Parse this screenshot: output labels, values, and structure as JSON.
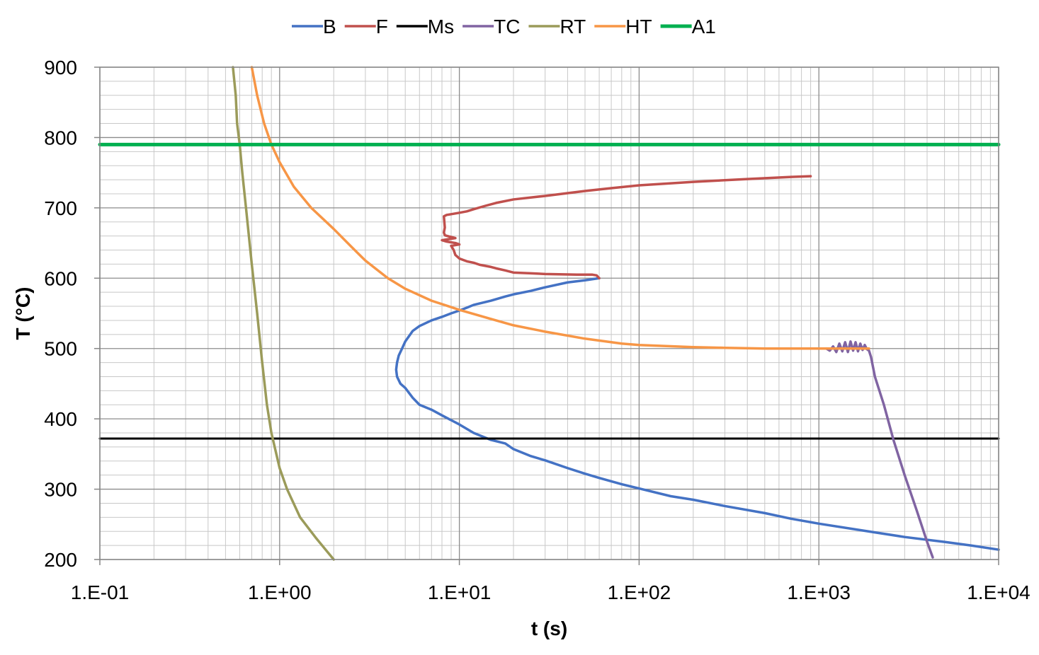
{
  "chart_data": {
    "type": "line",
    "title": "",
    "xlabel": "t (s)",
    "ylabel": "T (°C)",
    "xscale": "log",
    "xlim": [
      0.1,
      10000
    ],
    "ylim": [
      200,
      900
    ],
    "xticks": [
      0.1,
      1,
      10,
      100,
      1000,
      10000
    ],
    "xtick_labels": [
      "1.E-01",
      "1.E+00",
      "1.E+01",
      "1.E+02",
      "1.E+03",
      "1.E+04"
    ],
    "yticks": [
      200,
      300,
      400,
      500,
      600,
      700,
      800,
      900
    ],
    "ytick_labels": [
      "200",
      "300",
      "400",
      "500",
      "600",
      "700",
      "800",
      "900"
    ],
    "grid": true,
    "legend_position": "top",
    "series": [
      {
        "name": "B",
        "color": "#4472C4",
        "points": [
          [
            60,
            600
          ],
          [
            50,
            597
          ],
          [
            40,
            594
          ],
          [
            30,
            587
          ],
          [
            25,
            582
          ],
          [
            20,
            577
          ],
          [
            18,
            574
          ],
          [
            15,
            568
          ],
          [
            12,
            562
          ],
          [
            11,
            558
          ],
          [
            10,
            554
          ],
          [
            9,
            550
          ],
          [
            8,
            545
          ],
          [
            7,
            540
          ],
          [
            6,
            532
          ],
          [
            5.5,
            525
          ],
          [
            5,
            510
          ],
          [
            4.8,
            500
          ],
          [
            4.6,
            490
          ],
          [
            4.5,
            480
          ],
          [
            4.45,
            470
          ],
          [
            4.5,
            460
          ],
          [
            4.7,
            450
          ],
          [
            5,
            444
          ],
          [
            5.5,
            430
          ],
          [
            6,
            420
          ],
          [
            7,
            413
          ],
          [
            8,
            405
          ],
          [
            10,
            392
          ],
          [
            12,
            380
          ],
          [
            15,
            370
          ],
          [
            18,
            365
          ],
          [
            20,
            357
          ],
          [
            25,
            347
          ],
          [
            30,
            341
          ],
          [
            40,
            330
          ],
          [
            50,
            322
          ],
          [
            60,
            316
          ],
          [
            80,
            307
          ],
          [
            100,
            301
          ],
          [
            150,
            290
          ],
          [
            200,
            285
          ],
          [
            300,
            276
          ],
          [
            500,
            266
          ],
          [
            700,
            258
          ],
          [
            1000,
            251
          ],
          [
            2000,
            239
          ],
          [
            3000,
            232
          ],
          [
            5000,
            225
          ],
          [
            7000,
            220
          ],
          [
            10000,
            214
          ]
        ]
      },
      {
        "name": "F",
        "color": "#C0504D",
        "points": [
          [
            60,
            600
          ],
          [
            58,
            604
          ],
          [
            55,
            605
          ],
          [
            45,
            605
          ],
          [
            30,
            606
          ],
          [
            25,
            607
          ],
          [
            20,
            608
          ],
          [
            18,
            611
          ],
          [
            16,
            614
          ],
          [
            15,
            616
          ],
          [
            13,
            619
          ],
          [
            12,
            622
          ],
          [
            11,
            624
          ],
          [
            10,
            628
          ],
          [
            9.5,
            633
          ],
          [
            9.3,
            640
          ],
          [
            9,
            646
          ],
          [
            10,
            648
          ],
          [
            9.5,
            650
          ],
          [
            8.5,
            652
          ],
          [
            8,
            654
          ],
          [
            9.5,
            657
          ],
          [
            8.3,
            661
          ],
          [
            8.2,
            665
          ],
          [
            8.3,
            672
          ],
          [
            8.25,
            680
          ],
          [
            8.2,
            688
          ],
          [
            8.5,
            690
          ],
          [
            9,
            691
          ],
          [
            10,
            693
          ],
          [
            11,
            695
          ],
          [
            12,
            698
          ],
          [
            14,
            703
          ],
          [
            16,
            707
          ],
          [
            20,
            712
          ],
          [
            30,
            717
          ],
          [
            50,
            724
          ],
          [
            70,
            728
          ],
          [
            100,
            732
          ],
          [
            200,
            737
          ],
          [
            400,
            741
          ],
          [
            700,
            744
          ],
          [
            900,
            745
          ]
        ]
      },
      {
        "name": "Ms",
        "color": "#000000",
        "points": [
          [
            0.1,
            372
          ],
          [
            10000,
            372
          ]
        ]
      },
      {
        "name": "TC",
        "color": "#8064A2",
        "points": [
          [
            1100,
            500
          ],
          [
            1150,
            497
          ],
          [
            1200,
            503
          ],
          [
            1250,
            495
          ],
          [
            1300,
            507
          ],
          [
            1350,
            496
          ],
          [
            1400,
            509
          ],
          [
            1450,
            495
          ],
          [
            1500,
            510
          ],
          [
            1550,
            497
          ],
          [
            1600,
            509
          ],
          [
            1650,
            496
          ],
          [
            1700,
            507
          ],
          [
            1750,
            498
          ],
          [
            1800,
            505
          ],
          [
            1850,
            499
          ],
          [
            1900,
            497
          ],
          [
            1950,
            488
          ],
          [
            2050,
            460
          ],
          [
            2300,
            420
          ],
          [
            2600,
            370
          ],
          [
            3000,
            320
          ],
          [
            3500,
            270
          ],
          [
            4000,
            225
          ],
          [
            4300,
            203
          ]
        ]
      },
      {
        "name": "RT",
        "color": "#9B9B5A",
        "points": [
          [
            0.55,
            900
          ],
          [
            0.57,
            860
          ],
          [
            0.58,
            820
          ],
          [
            0.6,
            790
          ],
          [
            0.62,
            750
          ],
          [
            0.65,
            700
          ],
          [
            0.7,
            620
          ],
          [
            0.75,
            550
          ],
          [
            0.8,
            480
          ],
          [
            0.85,
            420
          ],
          [
            0.9,
            380
          ],
          [
            1,
            330
          ],
          [
            1.1,
            300
          ],
          [
            1.3,
            260
          ],
          [
            1.6,
            230
          ],
          [
            2,
            200
          ]
        ]
      },
      {
        "name": "HT",
        "color": "#F79646",
        "points": [
          [
            0.7,
            900
          ],
          [
            0.75,
            860
          ],
          [
            0.82,
            820
          ],
          [
            0.9,
            790
          ],
          [
            1,
            765
          ],
          [
            1.2,
            730
          ],
          [
            1.5,
            700
          ],
          [
            2,
            670
          ],
          [
            2.5,
            645
          ],
          [
            3,
            625
          ],
          [
            4,
            600
          ],
          [
            5,
            585
          ],
          [
            7,
            568
          ],
          [
            10,
            555
          ],
          [
            15,
            542
          ],
          [
            20,
            533
          ],
          [
            30,
            524
          ],
          [
            50,
            514
          ],
          [
            80,
            507
          ],
          [
            100,
            505
          ],
          [
            200,
            502
          ],
          [
            300,
            501
          ],
          [
            500,
            500
          ],
          [
            1000,
            500
          ],
          [
            1900,
            500
          ]
        ]
      },
      {
        "name": "A1",
        "color": "#00B050",
        "points": [
          [
            0.1,
            790
          ],
          [
            10000,
            790
          ]
        ]
      }
    ]
  }
}
